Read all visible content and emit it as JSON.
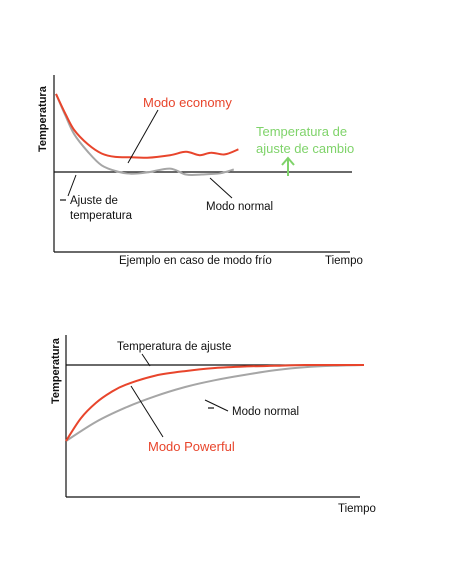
{
  "colors": {
    "red": "#e8452c",
    "gray": "#a6a6a6",
    "green": "#7fd36a",
    "black": "#111111"
  },
  "chart_data": [
    {
      "type": "line",
      "title": "",
      "xlabel": "Tiempo",
      "ylabel": "Temperatura",
      "caption": "Ejemplo en caso de modo frío",
      "series": [
        {
          "name": "Modo economy",
          "color": "#e8452c",
          "x": [
            0.0,
            0.04,
            0.08,
            0.14,
            0.2,
            0.26,
            0.33,
            0.4,
            0.5,
            0.57,
            0.63,
            0.68,
            0.74,
            0.8
          ],
          "y": [
            0.93,
            0.7,
            0.5,
            0.33,
            0.22,
            0.18,
            0.175,
            0.17,
            0.2,
            0.24,
            0.2,
            0.23,
            0.21,
            0.27
          ]
        },
        {
          "name": "Modo normal",
          "color": "#a6a6a6",
          "x": [
            0.0,
            0.04,
            0.08,
            0.14,
            0.2,
            0.27,
            0.33,
            0.4,
            0.5,
            0.57,
            0.64,
            0.72,
            0.78
          ],
          "y": [
            0.93,
            0.68,
            0.45,
            0.24,
            0.08,
            0.005,
            -0.02,
            -0.005,
            0.04,
            -0.03,
            -0.03,
            -0.015,
            0.03
          ]
        }
      ],
      "setpoint_label": "Ajuste de temperatura",
      "switch_label": "Temperatura de ajuste de cambio",
      "setpoint_y": 0.0
    },
    {
      "type": "line",
      "title": "",
      "xlabel": "Tiempo",
      "ylabel": "Temperatura",
      "series": [
        {
          "name": "Modo Powerful",
          "color": "#e8452c",
          "x": [
            0.0,
            0.05,
            0.1,
            0.15,
            0.2,
            0.3,
            0.4,
            0.5,
            0.6,
            0.7,
            0.8,
            0.9,
            1.0
          ],
          "y": [
            0.0,
            0.3,
            0.5,
            0.64,
            0.74,
            0.86,
            0.92,
            0.96,
            0.98,
            0.99,
            1.0,
            1.0,
            1.0
          ]
        },
        {
          "name": "Modo normal",
          "color": "#a6a6a6",
          "x": [
            0.0,
            0.1,
            0.2,
            0.3,
            0.4,
            0.5,
            0.6,
            0.7,
            0.8,
            0.9,
            1.0
          ],
          "y": [
            0.0,
            0.25,
            0.44,
            0.59,
            0.71,
            0.8,
            0.87,
            0.93,
            0.97,
            0.99,
            1.0
          ]
        }
      ],
      "setpoint_label": "Temperatura de ajuste",
      "setpoint_y": 1.0
    }
  ]
}
